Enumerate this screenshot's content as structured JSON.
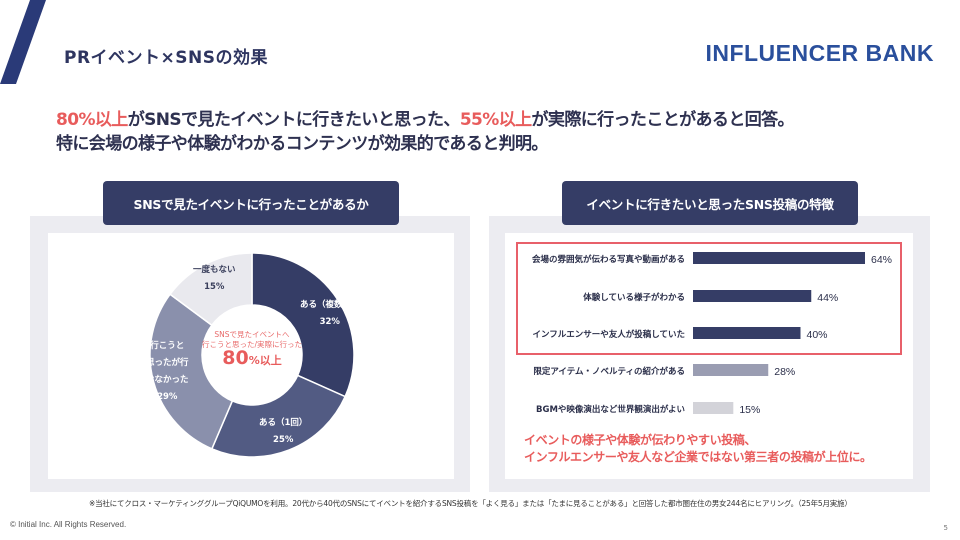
{
  "header": {
    "title": "PRイベント×SNSの効果",
    "brand": "INFLUENCER BANK"
  },
  "headline": {
    "line1_part1": "80%以上",
    "line1_part2": "がSNSで見たイベントに行きたいと思った、",
    "line1_part3": "55%以上",
    "line1_part4": "が実際に行ったことがあると回答。",
    "line2": "特に会場の様子や体験がわかるコンテンツが効果的であると判明。"
  },
  "left_panel": {
    "heading": "SNSで見たイベントに行ったことがあるか",
    "center_caption_1": "SNSで見たイベントへ",
    "center_caption_2": "行こうと思った/実際に行った",
    "center_value": "80",
    "center_unit": "%以上"
  },
  "right_panel": {
    "heading": "イベントに行きたいと思ったSNS投稿の特徴",
    "callout_line1": "イベントの様子や体験が伝わりやすい投稿、",
    "callout_line2": "インフルエンサーや友人など企業ではない第三者の投稿が上位に。"
  },
  "colors": {
    "navy": "#353d66",
    "accent_red": "#e85c5c",
    "slice_1": "#353d66",
    "slice_2": "#525b83",
    "slice_3": "#8a90ac",
    "slice_4": "#e9e9ee",
    "bar_top": "#353d66",
    "bar_mid": "#9a9db2",
    "bar_low": "#d3d3d9"
  },
  "chart_data": [
    {
      "type": "pie",
      "title": "SNSで見たイベントに行ったことがあるか",
      "slices": [
        {
          "label": "ある（複数回）",
          "value": 32,
          "value_label": "32%"
        },
        {
          "label": "ある（1回）",
          "value": 25,
          "value_label": "25%"
        },
        {
          "label": "行こうと思ったが行けなかった",
          "label_lines": [
            "行こうと",
            "思ったが行",
            "けなかった"
          ],
          "value": 29,
          "value_label": "29%"
        },
        {
          "label": "一度もない",
          "value": 15,
          "value_label": "15%"
        }
      ],
      "donut": true
    },
    {
      "type": "bar",
      "orientation": "horizontal",
      "title": "イベントに行きたいと思ったSNS投稿の特徴",
      "categories": [
        "会場の雰囲気が伝わる写真や動画がある",
        "体験している様子がわかる",
        "インフルエンサーや友人が投稿していた",
        "限定アイテム・ノベルティの紹介がある",
        "BGMや映像演出など世界観演出がよい"
      ],
      "values": [
        64,
        44,
        40,
        28,
        15
      ],
      "value_labels": [
        "64%",
        "44%",
        "40%",
        "28%",
        "15%"
      ],
      "highlighted": [
        true,
        true,
        true,
        false,
        false
      ],
      "xlim": [
        0,
        64
      ]
    }
  ],
  "footnote": "※当社にてクロス・マーケティンググループQiQUMOを利用。20代から40代のSNSにてイベントを紹介するSNS投稿を「よく見る」または「たまに見ることがある」と回答した都市圏在住の男女244名にヒアリング。（25年5月実施）",
  "copyright": "© Initial Inc. All Rights Reserved.",
  "page_number": "5"
}
